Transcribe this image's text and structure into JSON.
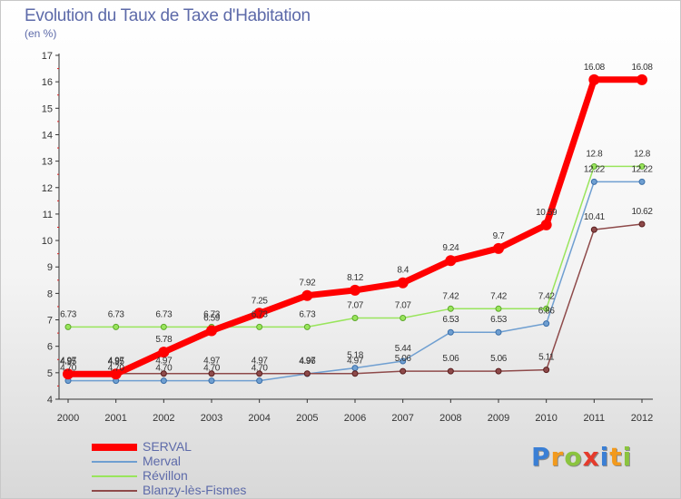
{
  "header": {
    "title": "Evolution du Taux de Taxe d'Habitation",
    "subtitle": "(en %)"
  },
  "logo": {
    "letters": [
      "P",
      "r",
      "o",
      "x",
      "i",
      "t",
      "i"
    ],
    "colors": [
      "#3a7fd5",
      "#f29a1d",
      "#8bc43f",
      "#e53b2c",
      "#3a7fd5",
      "#f29a1d",
      "#8bc43f"
    ]
  },
  "chart_data": {
    "type": "line",
    "title": "Evolution du Taux de Taxe d'Habitation",
    "subtitle": "(en %)",
    "x": [
      "2000",
      "2001",
      "2002",
      "2003",
      "2004",
      "2005",
      "2006",
      "2007",
      "2008",
      "2009",
      "2010",
      "2011",
      "2012"
    ],
    "ylim": [
      4,
      17
    ],
    "yticks": [
      "4",
      "5",
      "6",
      "7",
      "8",
      "9",
      "10",
      "11",
      "12",
      "13",
      "14",
      "15",
      "16",
      "17"
    ],
    "grid": false,
    "legend_position": "bottom-left",
    "series": [
      {
        "name": "SERVAL",
        "color": "#ff0000",
        "values": [
          4.95,
          4.95,
          5.78,
          6.59,
          7.25,
          7.92,
          8.12,
          8.4,
          9.24,
          9.7,
          10.59,
          16.08,
          16.08
        ],
        "labels": [
          "4.95",
          "4.95",
          "5.78",
          "6.59",
          "7.25",
          "7.92",
          "8.12",
          "8.4",
          "9.24",
          "9.7",
          "10.59",
          "16.08",
          "16.08"
        ]
      },
      {
        "name": "Merval",
        "color": "#6f9fd1",
        "values": [
          4.7,
          4.7,
          4.7,
          4.7,
          4.7,
          4.96,
          5.18,
          5.44,
          6.53,
          6.53,
          6.86,
          12.22,
          12.22
        ],
        "labels": [
          "4.70",
          "4.70",
          "4.70",
          "4.70",
          "4.70",
          "4.96",
          "5.18",
          "5.44",
          "6.53",
          "6.53",
          "6.86",
          "12.22",
          "12.22"
        ]
      },
      {
        "name": "Révillon",
        "color": "#99e55c",
        "values": [
          6.73,
          6.73,
          6.73,
          6.73,
          6.73,
          6.73,
          7.07,
          7.07,
          7.42,
          7.42,
          7.42,
          12.8,
          12.8
        ],
        "labels": [
          "6.73",
          "6.73",
          "6.73",
          "6.73",
          "6.73",
          "6.73",
          "7.07",
          "7.07",
          "7.42",
          "7.42",
          "7.42",
          "12.8",
          "12.8"
        ]
      },
      {
        "name": "Blanzy-lès-Fismes",
        "color": "#8e4a4a",
        "values": [
          4.97,
          4.97,
          4.97,
          4.97,
          4.97,
          4.97,
          4.97,
          5.06,
          5.06,
          5.06,
          5.11,
          10.41,
          10.62
        ],
        "labels": [
          "4.97",
          "4.97",
          "4.97",
          "4.97",
          "4.97",
          "4.97",
          "4.97",
          "5.06",
          "5.06",
          "5.06",
          "5.11",
          "10.41",
          "10.62"
        ]
      }
    ]
  }
}
